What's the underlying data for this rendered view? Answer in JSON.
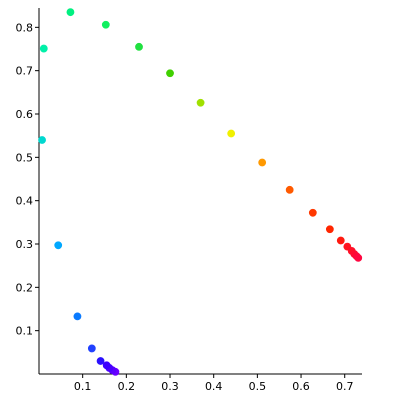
{
  "chart_data": {
    "type": "scatter",
    "title": "",
    "xlabel": "",
    "ylabel": "",
    "grid": false,
    "legend": "none",
    "xlim": [
      0.0,
      0.735
    ],
    "ylim": [
      0.0,
      0.84
    ],
    "x_ticks": [
      "0.1",
      "0.2",
      "0.3",
      "0.4",
      "0.5",
      "0.6",
      "0.7"
    ],
    "y_ticks": [
      "0.1",
      "0.2",
      "0.3",
      "0.4",
      "0.5",
      "0.6",
      "0.7",
      "0.8"
    ],
    "series": [
      {
        "points": [
          {
            "x": 0.175,
            "y": 0.005,
            "color": "#6a00ff"
          },
          {
            "x": 0.168,
            "y": 0.009,
            "color": "#5a00ff"
          },
          {
            "x": 0.161,
            "y": 0.014,
            "color": "#4a00ff"
          },
          {
            "x": 0.155,
            "y": 0.02,
            "color": "#3a00ff"
          },
          {
            "x": 0.141,
            "y": 0.03,
            "color": "#2a10ff"
          },
          {
            "x": 0.121,
            "y": 0.059,
            "color": "#2040ff"
          },
          {
            "x": 0.088,
            "y": 0.133,
            "color": "#0a7aff"
          },
          {
            "x": 0.044,
            "y": 0.297,
            "color": "#00a8ff"
          },
          {
            "x": 0.007,
            "y": 0.54,
            "color": "#00d8d0"
          },
          {
            "x": 0.011,
            "y": 0.751,
            "color": "#00f0a8"
          },
          {
            "x": 0.072,
            "y": 0.835,
            "color": "#00f080"
          },
          {
            "x": 0.153,
            "y": 0.806,
            "color": "#10f060"
          },
          {
            "x": 0.229,
            "y": 0.755,
            "color": "#20e040"
          },
          {
            "x": 0.3,
            "y": 0.694,
            "color": "#40d000"
          },
          {
            "x": 0.37,
            "y": 0.626,
            "color": "#a0e000"
          },
          {
            "x": 0.44,
            "y": 0.555,
            "color": "#f0f000"
          },
          {
            "x": 0.511,
            "y": 0.488,
            "color": "#ff9900"
          },
          {
            "x": 0.574,
            "y": 0.425,
            "color": "#ff5a00"
          },
          {
            "x": 0.627,
            "y": 0.372,
            "color": "#ff3800"
          },
          {
            "x": 0.666,
            "y": 0.334,
            "color": "#ff2600"
          },
          {
            "x": 0.691,
            "y": 0.308,
            "color": "#ff1a10"
          },
          {
            "x": 0.706,
            "y": 0.294,
            "color": "#ff1420"
          },
          {
            "x": 0.716,
            "y": 0.284,
            "color": "#ff1028"
          },
          {
            "x": 0.722,
            "y": 0.277,
            "color": "#ff0c30"
          },
          {
            "x": 0.727,
            "y": 0.272,
            "color": "#ff0838"
          },
          {
            "x": 0.731,
            "y": 0.268,
            "color": "#ff0640"
          }
        ]
      }
    ]
  }
}
